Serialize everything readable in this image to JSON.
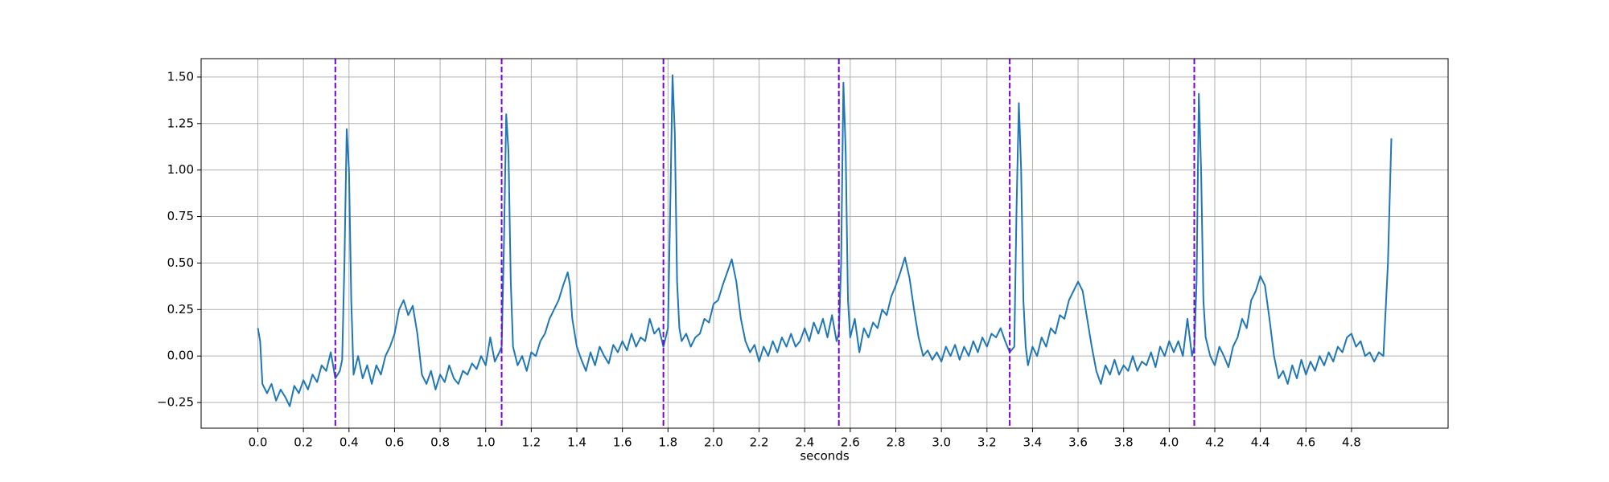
{
  "chart_data": {
    "type": "line",
    "xlabel": "seconds",
    "color": "#1f77b4",
    "grid": true,
    "vlines": [
      0.34,
      1.07,
      1.78,
      2.55,
      3.3,
      4.11
    ],
    "vline_color": "#7b00dc",
    "xlim": [
      -0.249,
      5.224
    ],
    "ylim": [
      -0.388,
      1.599
    ],
    "xticks": [
      {
        "value": 0,
        "label": "0.0"
      },
      0.2,
      0.4,
      0.6,
      0.8,
      {
        "value": 1,
        "label": "1.0"
      },
      1.2,
      1.4,
      1.6,
      1.8,
      {
        "value": 2,
        "label": "2.0"
      },
      2.2,
      2.4,
      2.6,
      2.8,
      {
        "value": 3,
        "label": "3.0"
      },
      3.2,
      3.4,
      3.6,
      3.8,
      {
        "value": 4,
        "label": "4.0"
      },
      4.2,
      4.4,
      4.6,
      4.8
    ],
    "yticks": [
      {
        "value": -0.25,
        "label": "−0.25"
      },
      {
        "value": 0,
        "label": "0.00"
      },
      {
        "value": 0.25,
        "label": "0.25"
      },
      {
        "value": 0.5,
        "label": "0.50"
      },
      {
        "value": 0.75,
        "label": "0.75"
      },
      {
        "value": 1,
        "label": "1.00"
      },
      {
        "value": 1.25,
        "label": "1.25"
      },
      {
        "value": 1.5,
        "label": "1.50"
      }
    ],
    "x": [
      0.0,
      0.01,
      0.02,
      0.04,
      0.06,
      0.08,
      0.1,
      0.12,
      0.14,
      0.16,
      0.18,
      0.2,
      0.22,
      0.24,
      0.26,
      0.28,
      0.3,
      0.32,
      0.34,
      0.36,
      0.37,
      0.38,
      0.39,
      0.4,
      0.41,
      0.42,
      0.44,
      0.46,
      0.48,
      0.5,
      0.52,
      0.54,
      0.56,
      0.58,
      0.6,
      0.62,
      0.64,
      0.66,
      0.68,
      0.7,
      0.72,
      0.74,
      0.76,
      0.78,
      0.8,
      0.82,
      0.84,
      0.86,
      0.88,
      0.9,
      0.92,
      0.94,
      0.96,
      0.98,
      1.0,
      1.02,
      1.04,
      1.06,
      1.07,
      1.08,
      1.09,
      1.1,
      1.11,
      1.12,
      1.14,
      1.16,
      1.18,
      1.2,
      1.22,
      1.24,
      1.26,
      1.28,
      1.3,
      1.32,
      1.34,
      1.36,
      1.37,
      1.38,
      1.4,
      1.42,
      1.44,
      1.46,
      1.48,
      1.5,
      1.52,
      1.54,
      1.56,
      1.58,
      1.6,
      1.62,
      1.64,
      1.66,
      1.68,
      1.7,
      1.72,
      1.74,
      1.76,
      1.78,
      1.8,
      1.81,
      1.82,
      1.83,
      1.84,
      1.85,
      1.86,
      1.88,
      1.9,
      1.92,
      1.94,
      1.96,
      1.98,
      2.0,
      2.02,
      2.04,
      2.06,
      2.08,
      2.1,
      2.12,
      2.14,
      2.16,
      2.18,
      2.2,
      2.22,
      2.24,
      2.26,
      2.28,
      2.3,
      2.32,
      2.34,
      2.36,
      2.38,
      2.4,
      2.42,
      2.44,
      2.46,
      2.48,
      2.5,
      2.52,
      2.54,
      2.55,
      2.56,
      2.57,
      2.58,
      2.59,
      2.6,
      2.62,
      2.64,
      2.66,
      2.68,
      2.7,
      2.72,
      2.74,
      2.76,
      2.78,
      2.8,
      2.82,
      2.84,
      2.86,
      2.88,
      2.9,
      2.92,
      2.94,
      2.96,
      2.98,
      3.0,
      3.02,
      3.04,
      3.06,
      3.08,
      3.1,
      3.12,
      3.14,
      3.16,
      3.18,
      3.2,
      3.22,
      3.24,
      3.26,
      3.28,
      3.3,
      3.32,
      3.33,
      3.34,
      3.35,
      3.36,
      3.37,
      3.38,
      3.4,
      3.42,
      3.44,
      3.46,
      3.48,
      3.5,
      3.52,
      3.54,
      3.56,
      3.58,
      3.6,
      3.62,
      3.64,
      3.66,
      3.68,
      3.7,
      3.72,
      3.74,
      3.76,
      3.78,
      3.8,
      3.82,
      3.84,
      3.86,
      3.88,
      3.9,
      3.92,
      3.94,
      3.96,
      3.98,
      4.0,
      4.02,
      4.04,
      4.06,
      4.08,
      4.1,
      4.11,
      4.12,
      4.13,
      4.14,
      4.15,
      4.16,
      4.18,
      4.2,
      4.22,
      4.24,
      4.26,
      4.28,
      4.3,
      4.32,
      4.34,
      4.36,
      4.38,
      4.4,
      4.42,
      4.44,
      4.46,
      4.48,
      4.5,
      4.52,
      4.54,
      4.56,
      4.58,
      4.6,
      4.62,
      4.64,
      4.66,
      4.68,
      4.7,
      4.72,
      4.74,
      4.76,
      4.78,
      4.8,
      4.82,
      4.84,
      4.86,
      4.88,
      4.9,
      4.92,
      4.94,
      4.96,
      4.975
    ],
    "values": [
      0.15,
      0.08,
      -0.15,
      -0.2,
      -0.15,
      -0.24,
      -0.18,
      -0.22,
      -0.27,
      -0.16,
      -0.2,
      -0.13,
      -0.18,
      -0.1,
      -0.14,
      -0.05,
      -0.08,
      0.02,
      -0.12,
      -0.08,
      -0.02,
      0.5,
      1.22,
      1.0,
      0.3,
      -0.1,
      0.0,
      -0.12,
      -0.05,
      -0.15,
      -0.05,
      -0.1,
      0.0,
      0.05,
      0.12,
      0.25,
      0.3,
      0.22,
      0.27,
      0.12,
      -0.1,
      -0.15,
      -0.08,
      -0.18,
      -0.1,
      -0.14,
      -0.05,
      -0.12,
      -0.15,
      -0.08,
      -0.1,
      -0.04,
      -0.07,
      0.0,
      -0.05,
      0.1,
      -0.03,
      0.02,
      0.05,
      0.6,
      1.3,
      1.1,
      0.4,
      0.05,
      -0.05,
      0.0,
      -0.08,
      0.02,
      0.0,
      0.08,
      0.12,
      0.2,
      0.25,
      0.3,
      0.38,
      0.45,
      0.38,
      0.2,
      0.05,
      -0.02,
      -0.08,
      0.02,
      -0.05,
      0.05,
      0.0,
      -0.04,
      0.06,
      0.02,
      0.08,
      0.03,
      0.12,
      0.05,
      0.1,
      0.08,
      0.2,
      0.12,
      0.15,
      0.05,
      0.15,
      0.8,
      1.51,
      1.2,
      0.4,
      0.15,
      0.08,
      0.12,
      0.05,
      0.1,
      0.12,
      0.2,
      0.18,
      0.28,
      0.3,
      0.38,
      0.45,
      0.52,
      0.4,
      0.2,
      0.08,
      0.02,
      0.06,
      -0.03,
      0.05,
      0.0,
      0.08,
      0.02,
      0.1,
      0.05,
      0.12,
      0.05,
      0.08,
      0.15,
      0.08,
      0.18,
      0.12,
      0.2,
      0.1,
      0.22,
      0.08,
      0.12,
      0.5,
      1.47,
      1.1,
      0.3,
      0.1,
      0.2,
      0.02,
      0.15,
      0.1,
      0.18,
      0.15,
      0.25,
      0.22,
      0.32,
      0.38,
      0.45,
      0.53,
      0.42,
      0.25,
      0.1,
      0.0,
      0.03,
      -0.02,
      0.02,
      -0.03,
      0.05,
      0.0,
      0.06,
      -0.02,
      0.05,
      0.0,
      0.08,
      0.02,
      0.1,
      0.05,
      0.12,
      0.1,
      0.15,
      0.08,
      0.02,
      0.05,
      0.8,
      1.36,
      1.0,
      0.3,
      0.05,
      -0.05,
      0.05,
      0.0,
      0.1,
      0.05,
      0.15,
      0.12,
      0.22,
      0.2,
      0.3,
      0.35,
      0.4,
      0.35,
      0.2,
      0.05,
      -0.08,
      -0.15,
      -0.05,
      -0.1,
      -0.02,
      -0.1,
      -0.05,
      -0.08,
      0.0,
      -0.08,
      -0.03,
      -0.05,
      0.02,
      -0.06,
      0.05,
      0.0,
      0.08,
      0.02,
      0.08,
      0.0,
      0.2,
      0.0,
      0.05,
      0.4,
      1.41,
      1.0,
      0.3,
      0.1,
      0.0,
      -0.05,
      0.05,
      0.0,
      -0.06,
      0.05,
      0.1,
      0.2,
      0.15,
      0.3,
      0.35,
      0.43,
      0.38,
      0.2,
      0.0,
      -0.12,
      -0.08,
      -0.15,
      -0.05,
      -0.12,
      -0.02,
      -0.1,
      -0.03,
      -0.08,
      0.0,
      -0.05,
      0.02,
      -0.03,
      0.05,
      0.02,
      0.1,
      0.12,
      0.05,
      0.08,
      0.0,
      0.02,
      -0.03,
      0.02,
      0.0,
      0.5,
      1.17
    ]
  }
}
